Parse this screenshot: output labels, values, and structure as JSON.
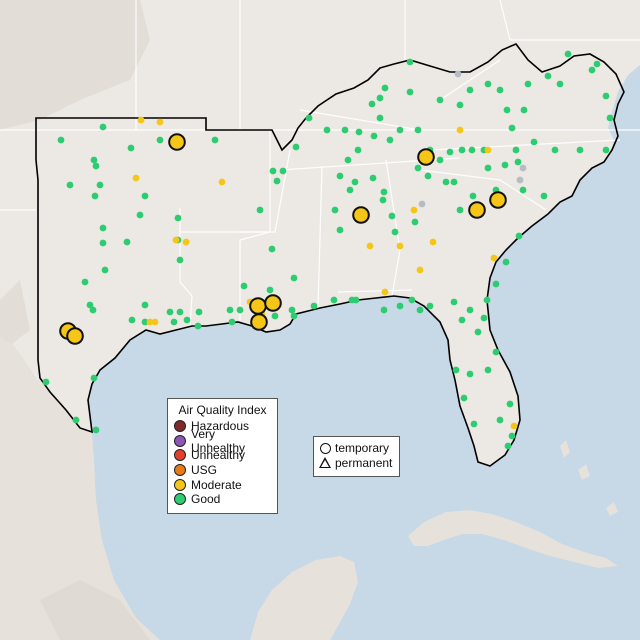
{
  "legend": {
    "title": "Air Quality Index",
    "items": [
      {
        "label": "Hazardous",
        "color": "#7e2a2a"
      },
      {
        "label": "Very Unhealthy",
        "color": "#8e55b4"
      },
      {
        "label": "Unhealthy",
        "color": "#e0402c"
      },
      {
        "label": "USG",
        "color": "#e87b18"
      },
      {
        "label": "Moderate",
        "color": "#f5c518"
      },
      {
        "label": "Good",
        "color": "#2ecc71"
      }
    ]
  },
  "monitor_types": {
    "temporary": "temporary",
    "permanent": "permanent"
  },
  "colors": {
    "water": "#c7d8e6",
    "land": "#ece9e4",
    "terrain": "#dcd6cf",
    "boundary": "#000000",
    "state_lines": "#ffffff",
    "good": "#2ecc71",
    "moderate": "#f5c518",
    "offline": "#b6bcc4"
  }
}
